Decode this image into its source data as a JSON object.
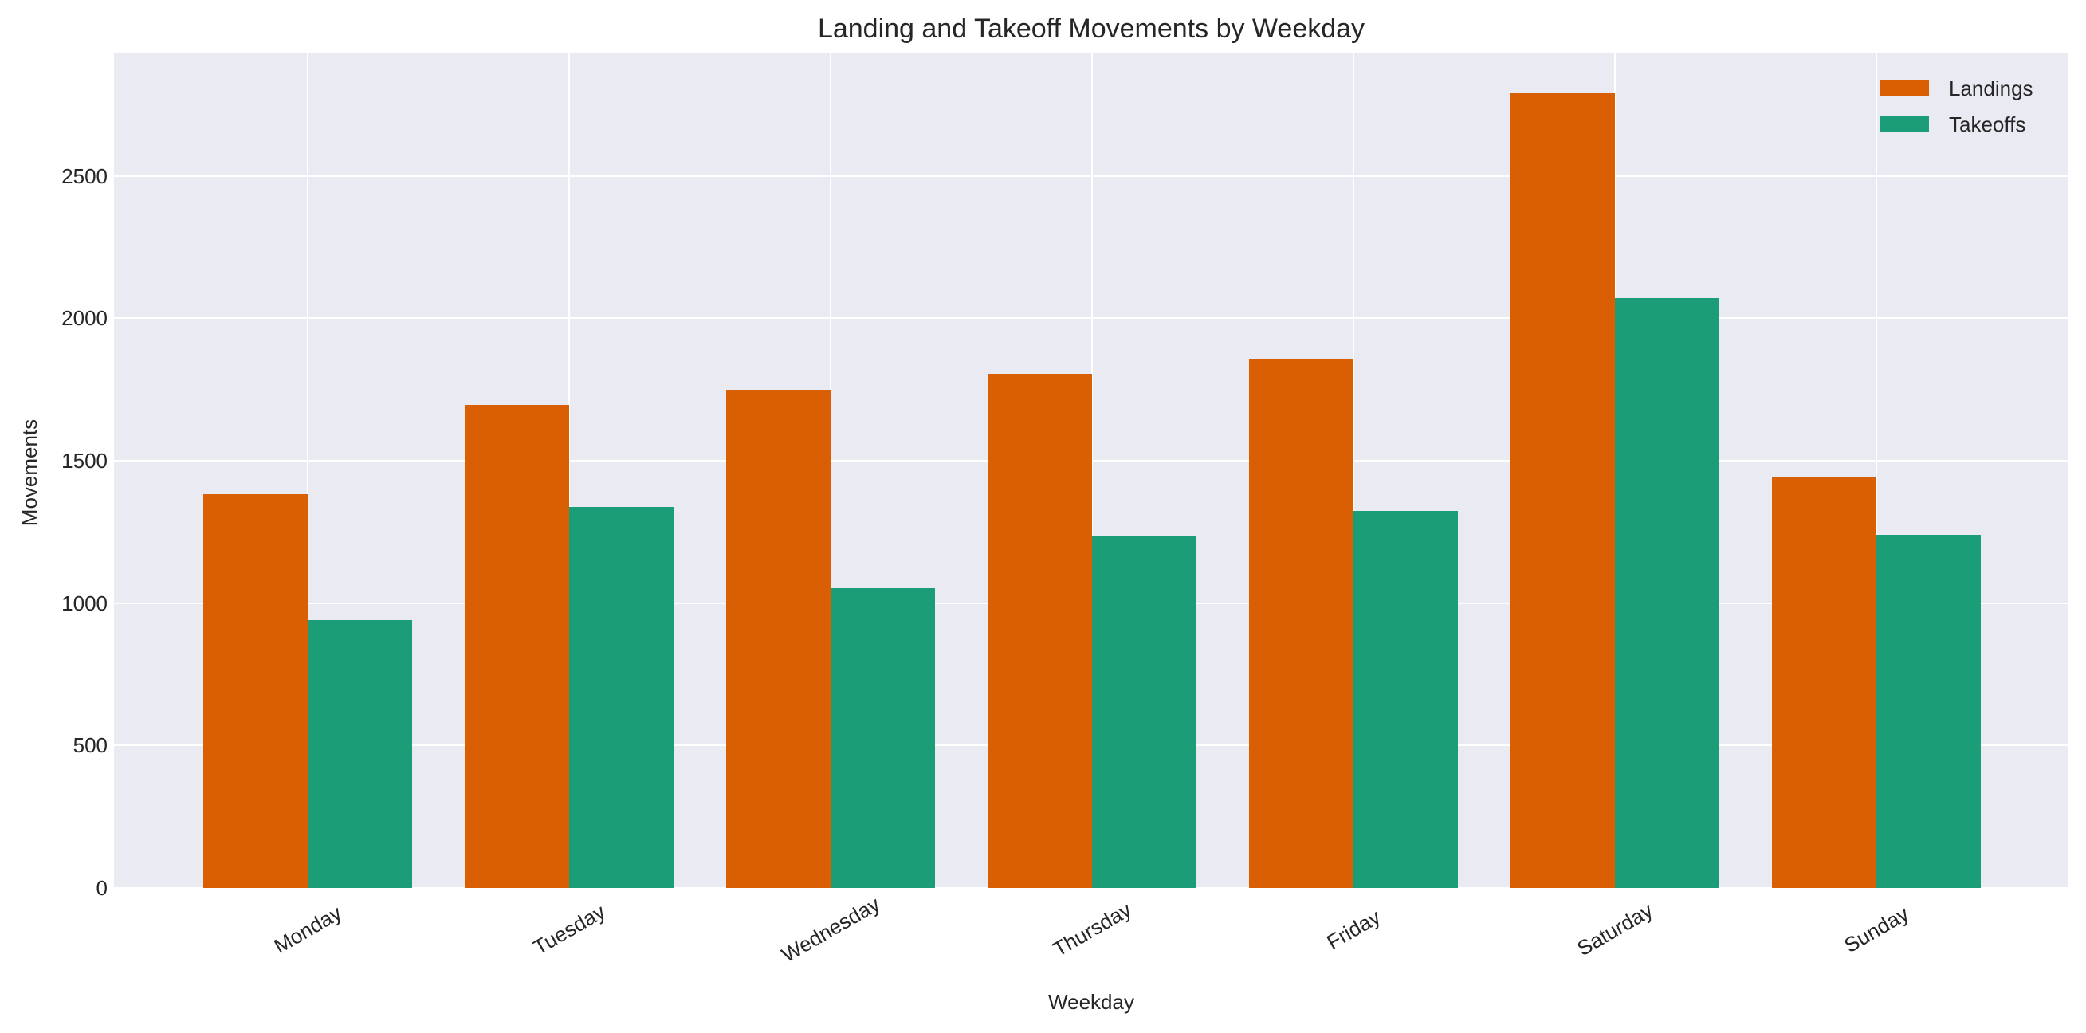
{
  "chart_data": {
    "type": "bar",
    "title": "Landing and Takeoff Movements by Weekday",
    "xlabel": "Weekday",
    "ylabel": "Movements",
    "categories": [
      "Monday",
      "Tuesday",
      "Wednesday",
      "Thursday",
      "Friday",
      "Saturday",
      "Sunday"
    ],
    "series": [
      {
        "name": "Landings",
        "color": "#D95F02",
        "values": [
          1383,
          1696,
          1749,
          1805,
          1858,
          2790,
          1444
        ]
      },
      {
        "name": "Takeoffs",
        "color": "#1B9E77",
        "values": [
          940,
          1339,
          1052,
          1234,
          1324,
          2071,
          1240
        ]
      }
    ],
    "yticks": [
      0,
      500,
      1000,
      1500,
      2000,
      2500
    ],
    "ylim": [
      0,
      2930
    ],
    "grid": true,
    "legend_position": "upper right",
    "xtick_rotation": 30,
    "background_color": "#EAEAF2"
  }
}
